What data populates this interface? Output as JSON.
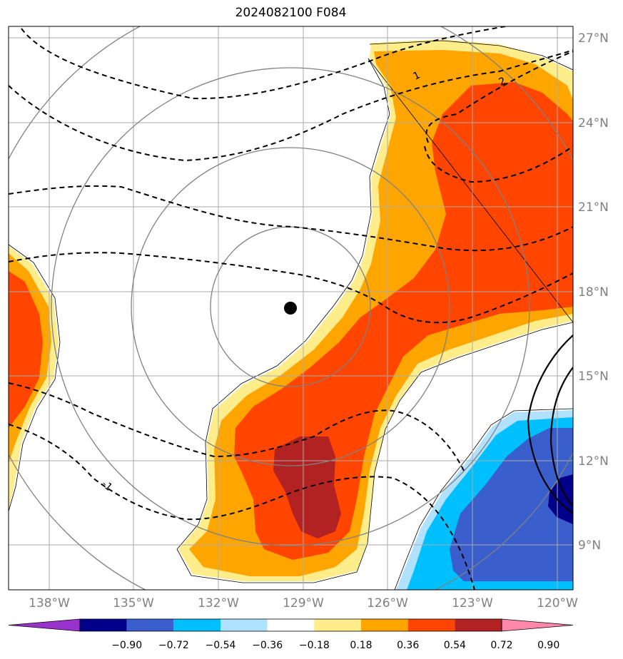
{
  "title": "2024082100 F084",
  "map": {
    "lon_labels": [
      "138°W",
      "135°W",
      "132°W",
      "129°W",
      "126°W",
      "123°W",
      "120°W"
    ],
    "lat_labels": [
      "27°N",
      "24°N",
      "21°N",
      "18°N",
      "15°N",
      "12°N",
      "9°N"
    ],
    "storm_center": {
      "lon": -129.5,
      "lat": 17.4
    },
    "contour_labels": [
      "1",
      "2",
      "-1"
    ]
  },
  "colorbar": {
    "levels": [
      "−0.90",
      "−0.72",
      "−0.54",
      "−0.36",
      "−0.18",
      "0.18",
      "0.36",
      "0.54",
      "0.72",
      "0.90"
    ],
    "colors": [
      "#9933cc",
      "#00008b",
      "#3a5fcd",
      "#00bfff",
      "#b0e2ff",
      "#ffffff",
      "#ffec8b",
      "#ffa500",
      "#ff4500",
      "#b22222",
      "#ff88aa"
    ]
  }
}
